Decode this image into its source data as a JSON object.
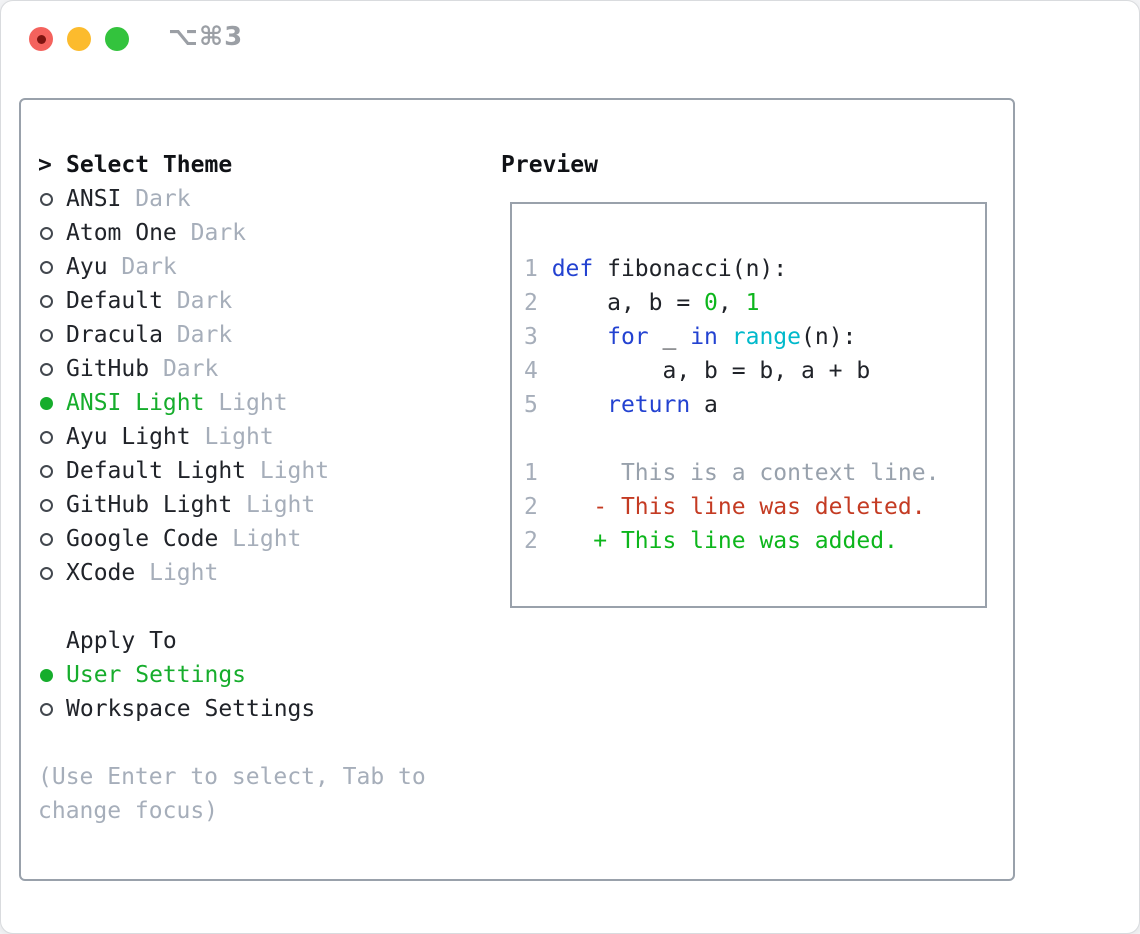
{
  "window": {
    "shortcut": "⌥⌘3",
    "buttons": [
      "close",
      "minimize",
      "zoom"
    ]
  },
  "theme_picker": {
    "prompt_prefix": ">",
    "title": "Select Theme",
    "items": [
      {
        "label": "ANSI",
        "tag": "Dark",
        "selected": false
      },
      {
        "label": "Atom One",
        "tag": "Dark",
        "selected": false
      },
      {
        "label": "Ayu",
        "tag": "Dark",
        "selected": false
      },
      {
        "label": "Default",
        "tag": "Dark",
        "selected": false
      },
      {
        "label": "Dracula",
        "tag": "Dark",
        "selected": false
      },
      {
        "label": "GitHub",
        "tag": "Dark",
        "selected": false
      },
      {
        "label": "ANSI Light",
        "tag": "Light",
        "selected": true
      },
      {
        "label": "Ayu Light",
        "tag": "Light",
        "selected": false
      },
      {
        "label": "Default Light",
        "tag": "Light",
        "selected": false
      },
      {
        "label": "GitHub Light",
        "tag": "Light",
        "selected": false
      },
      {
        "label": "Google Code",
        "tag": "Light",
        "selected": false
      },
      {
        "label": "XCode",
        "tag": "Light",
        "selected": false
      }
    ],
    "apply_to": {
      "title": "Apply To",
      "options": [
        {
          "label": "User Settings",
          "selected": true
        },
        {
          "label": "Workspace Settings",
          "selected": false
        }
      ]
    },
    "hint": "(Use Enter to select, Tab to change focus)"
  },
  "preview": {
    "title": "Preview",
    "lines": [
      [
        {
          "c": "ln",
          "t": "1 "
        },
        {
          "c": "kw",
          "t": "def"
        },
        {
          "c": "pl",
          "t": " fibonacci(n):"
        }
      ],
      [
        {
          "c": "ln",
          "t": "2 "
        },
        {
          "c": "pl",
          "t": "    a, b = "
        },
        {
          "c": "nm",
          "t": "0"
        },
        {
          "c": "pl",
          "t": ", "
        },
        {
          "c": "nm",
          "t": "1"
        }
      ],
      [
        {
          "c": "ln",
          "t": "3 "
        },
        {
          "c": "pl",
          "t": "    "
        },
        {
          "c": "kw",
          "t": "for"
        },
        {
          "c": "pl",
          "t": " _ "
        },
        {
          "c": "kw",
          "t": "in"
        },
        {
          "c": "pl",
          "t": " "
        },
        {
          "c": "fn",
          "t": "range"
        },
        {
          "c": "pl",
          "t": "(n):"
        }
      ],
      [
        {
          "c": "ln",
          "t": "4 "
        },
        {
          "c": "pl",
          "t": "        a, b = b, a + b"
        }
      ],
      [
        {
          "c": "ln",
          "t": "5 "
        },
        {
          "c": "pl",
          "t": "    "
        },
        {
          "c": "kw",
          "t": "return"
        },
        {
          "c": "pl",
          "t": " a"
        }
      ],
      [],
      [
        {
          "c": "ln",
          "t": "1"
        },
        {
          "c": "cx",
          "t": "      This is a context line."
        }
      ],
      [
        {
          "c": "ln",
          "t": "2"
        },
        {
          "c": "pl",
          "t": "    "
        },
        {
          "c": "del",
          "t": "- This line was deleted."
        }
      ],
      [
        {
          "c": "ln",
          "t": "2"
        },
        {
          "c": "pl",
          "t": "    "
        },
        {
          "c": "add",
          "t": "+ This line was added."
        }
      ]
    ]
  },
  "colors": {
    "keyword": "#2342d1",
    "function": "#00b9cb",
    "number": "#0db61c",
    "added": "#0db61c",
    "deleted": "#c43b23",
    "selection": "#16ad2c",
    "muted": "#a6aeba",
    "context": "#98a1ac",
    "lineno": "#a6aeba",
    "text": "#202329",
    "panel_border": "#99a1ab"
  }
}
